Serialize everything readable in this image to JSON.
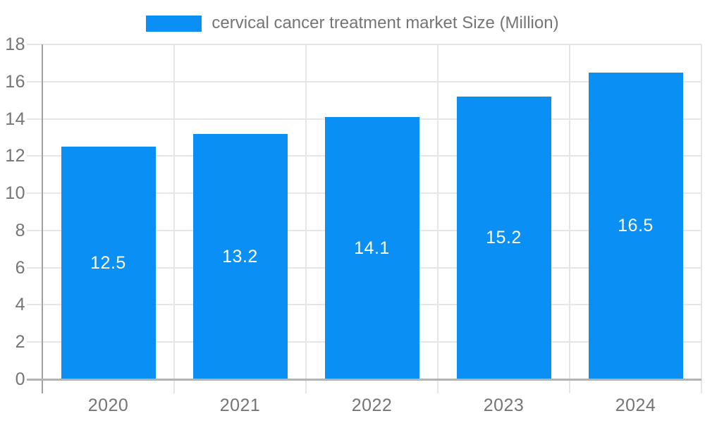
{
  "chart_data": {
    "type": "bar",
    "title": "cervical cancer treatment market Size (Million)",
    "legend": {
      "position": "top",
      "items": [
        {
          "label": "cervical cancer treatment market Size (Million)",
          "color": "#0a90f5"
        }
      ]
    },
    "categories": [
      "2020",
      "2021",
      "2022",
      "2023",
      "2024"
    ],
    "series": [
      {
        "name": "cervical cancer treatment market Size (Million)",
        "values": [
          12.5,
          13.2,
          14.1,
          15.2,
          16.5
        ]
      }
    ],
    "data_labels": [
      "12.5",
      "13.2",
      "14.1",
      "15.2",
      "16.5"
    ],
    "xlabel": "",
    "ylabel": "",
    "ylim": [
      0,
      18
    ],
    "yticks": [
      0,
      2,
      4,
      6,
      8,
      10,
      12,
      14,
      16,
      18
    ],
    "grid": true,
    "colors": {
      "bar": "#0a90f5",
      "grid": "#e6e6e6",
      "axis_line": "#a0a0a0",
      "baseline": "#b3b3b3",
      "tick_label": "#757575",
      "legend_text": "#757575",
      "data_label": "#ffffff",
      "background": "#ffffff"
    }
  }
}
